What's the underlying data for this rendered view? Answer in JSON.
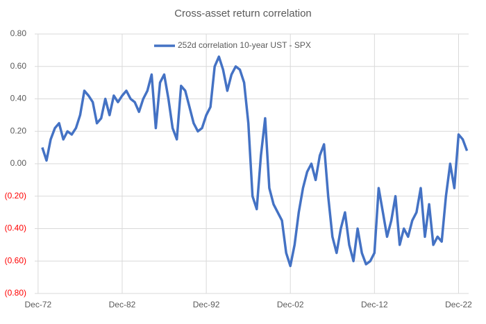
{
  "chart_data": {
    "type": "line",
    "title": "Cross-asset return correlation",
    "x": [
      1973.5,
      1974,
      1974.5,
      1975,
      1975.5,
      1976,
      1976.5,
      1977,
      1977.5,
      1978,
      1978.5,
      1979,
      1979.5,
      1980,
      1980.5,
      1981,
      1981.5,
      1982,
      1982.5,
      1983,
      1983.5,
      1984,
      1984.5,
      1985,
      1985.5,
      1986,
      1986.5,
      1987,
      1987.5,
      1988,
      1988.5,
      1989,
      1989.5,
      1990,
      1990.5,
      1991,
      1991.5,
      1992,
      1992.5,
      1993,
      1993.5,
      1994,
      1994.5,
      1995,
      1995.5,
      1996,
      1996.5,
      1997,
      1997.5,
      1998,
      1998.5,
      1999,
      1999.5,
      2000,
      2000.5,
      2001,
      2001.5,
      2002,
      2002.5,
      2003,
      2003.5,
      2004,
      2004.5,
      2005,
      2005.5,
      2006,
      2006.5,
      2007,
      2007.5,
      2008,
      2008.5,
      2009,
      2009.5,
      2010,
      2010.5,
      2011,
      2011.5,
      2012,
      2012.5,
      2013,
      2013.5,
      2014,
      2014.5,
      2015,
      2015.5,
      2016,
      2016.5,
      2017,
      2017.5,
      2018,
      2018.5,
      2019,
      2019.5,
      2020,
      2020.5,
      2021,
      2021.5,
      2022,
      2022.5,
      2023,
      2023.5,
      2024
    ],
    "series": [
      {
        "name": "252d correlation 10-year UST - SPX",
        "color": "#4472c4",
        "values": [
          0.1,
          0.02,
          0.15,
          0.22,
          0.25,
          0.15,
          0.2,
          0.18,
          0.22,
          0.3,
          0.45,
          0.42,
          0.38,
          0.25,
          0.28,
          0.4,
          0.3,
          0.42,
          0.38,
          0.42,
          0.45,
          0.4,
          0.38,
          0.32,
          0.4,
          0.45,
          0.55,
          0.22,
          0.5,
          0.55,
          0.4,
          0.22,
          0.15,
          0.48,
          0.45,
          0.35,
          0.25,
          0.2,
          0.22,
          0.3,
          0.35,
          0.6,
          0.66,
          0.58,
          0.45,
          0.55,
          0.6,
          0.58,
          0.5,
          0.25,
          -0.2,
          -0.28,
          0.05,
          0.28,
          -0.15,
          -0.25,
          -0.3,
          -0.35,
          -0.55,
          -0.63,
          -0.5,
          -0.3,
          -0.15,
          -0.05,
          0.0,
          -0.1,
          0.05,
          0.12,
          -0.2,
          -0.45,
          -0.55,
          -0.4,
          -0.3,
          -0.5,
          -0.6,
          -0.4,
          -0.55,
          -0.62,
          -0.6,
          -0.55,
          -0.15,
          -0.3,
          -0.45,
          -0.35,
          -0.2,
          -0.5,
          -0.4,
          -0.45,
          -0.35,
          -0.3,
          -0.15,
          -0.45,
          -0.25,
          -0.5,
          -0.45,
          -0.48,
          -0.2,
          0.0,
          -0.15,
          0.18,
          0.15,
          0.08
        ]
      }
    ],
    "xlim": [
      1972.6,
      2024.2
    ],
    "xticks": [
      {
        "value": 1973,
        "label": "Dec-72"
      },
      {
        "value": 1983,
        "label": "Dec-82"
      },
      {
        "value": 1993,
        "label": "Dec-92"
      },
      {
        "value": 2003,
        "label": "Dec-02"
      },
      {
        "value": 2013,
        "label": "Dec-12"
      },
      {
        "value": 2023,
        "label": "Dec-22"
      }
    ],
    "ylim": [
      -0.8,
      0.8
    ],
    "yticks": [
      {
        "value": -0.8,
        "label": "(0.80)"
      },
      {
        "value": -0.6,
        "label": "(0.60)"
      },
      {
        "value": -0.4,
        "label": "(0.40)"
      },
      {
        "value": -0.2,
        "label": "(0.20)"
      },
      {
        "value": 0,
        "label": "0.00"
      },
      {
        "value": 0.2,
        "label": "0.20"
      },
      {
        "value": 0.4,
        "label": "0.40"
      },
      {
        "value": 0.6,
        "label": "0.60"
      },
      {
        "value": 0.8,
        "label": "0.80"
      }
    ],
    "negative_tick_color": "#ff0000",
    "grid": true,
    "legend": "top"
  }
}
